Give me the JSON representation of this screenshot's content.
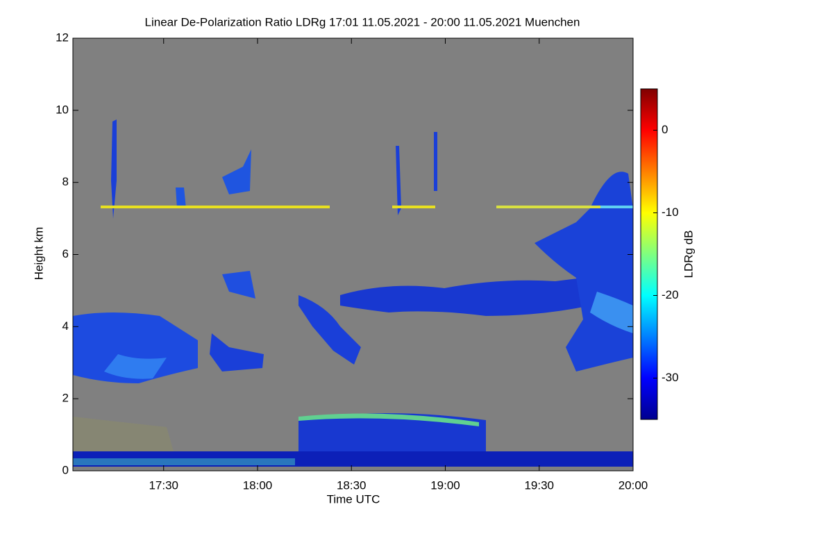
{
  "chart_data": {
    "type": "heatmap",
    "title": "Linear De-Polarization Ratio LDRg   17:01 11.05.2021 - 20:00 11.05.2021 Muenchen",
    "x_label": "Time UTC",
    "y_label": "Height km",
    "colorbar_label": "LDRg dB",
    "xlim": [
      1021,
      1200
    ],
    "xticks": [
      {
        "value": 1050,
        "label": "17:30"
      },
      {
        "value": 1080,
        "label": "18:00"
      },
      {
        "value": 1110,
        "label": "18:30"
      },
      {
        "value": 1140,
        "label": "19:00"
      },
      {
        "value": 1170,
        "label": "19:30"
      },
      {
        "value": 1200,
        "label": "20:00"
      }
    ],
    "ylim": [
      0,
      12
    ],
    "yticks": [
      0,
      2,
      4,
      6,
      8,
      10,
      12
    ],
    "clim": [
      -35,
      5
    ],
    "cticks": [
      -30,
      -20,
      -10,
      0
    ],
    "colormap": "jet",
    "background": "#808080"
  }
}
